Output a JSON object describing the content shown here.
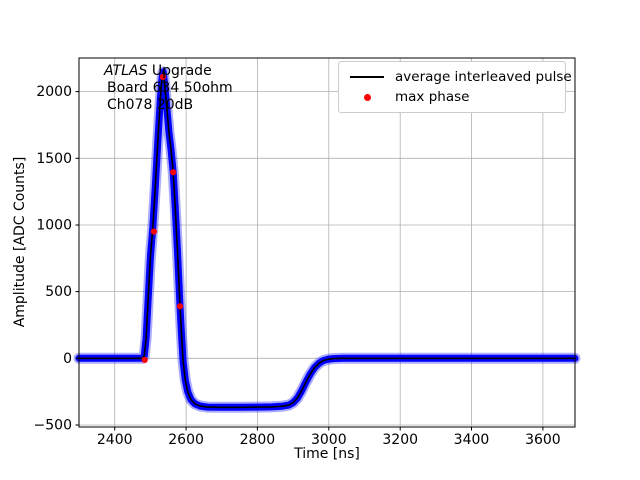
{
  "figure": {
    "background": "#ffffff"
  },
  "chart_data": {
    "type": "line",
    "title": "",
    "xlabel": "Time [ns]",
    "ylabel": "Amplitude [ADC Counts]",
    "xlim": [
      2300,
      3690
    ],
    "ylim": [
      -515,
      2252
    ],
    "grid": true,
    "xticks": {
      "values": [
        2400,
        2600,
        2800,
        3000,
        3200,
        3400,
        3600
      ],
      "labels": [
        "2400",
        "2600",
        "2800",
        "3000",
        "3200",
        "3400",
        "3600"
      ]
    },
    "yticks": {
      "values": [
        -500,
        0,
        500,
        1000,
        1500,
        2000
      ],
      "labels": [
        "−500",
        "0",
        "500",
        "1000",
        "1500",
        "2000"
      ]
    },
    "colors": {
      "grid": "#b0b0b0",
      "spine": "#000000",
      "pulse_band": "#0000ff",
      "average_line": "#000000",
      "max_phase": "#ff0000",
      "legend_border": "#cccccc"
    },
    "annotation": {
      "line1_italic": "ATLAS",
      "line1_rest": " Upgrade",
      "line2": "Board 634 50ohm",
      "line3": "Ch078 20dB"
    },
    "legend": {
      "position": "upper-right",
      "entries": [
        {
          "label": "average interleaved pulse",
          "marker": "line",
          "color": "#000000"
        },
        {
          "label": "max phase",
          "marker": "dot",
          "color": "#ff0000"
        }
      ]
    },
    "series": [
      {
        "name": "interleaved pulses",
        "style": "band",
        "color": "#0000ff"
      },
      {
        "name": "average interleaved pulse",
        "style": "line",
        "color": "#000000"
      }
    ],
    "pulse_points": [
      [
        2300,
        0
      ],
      [
        2360,
        0
      ],
      [
        2420,
        0
      ],
      [
        2460,
        0
      ],
      [
        2478,
        0
      ],
      [
        2483,
        20
      ],
      [
        2488,
        150
      ],
      [
        2494,
        450
      ],
      [
        2500,
        760
      ],
      [
        2507,
        990
      ],
      [
        2514,
        1300
      ],
      [
        2521,
        1640
      ],
      [
        2528,
        1950
      ],
      [
        2533,
        2110
      ],
      [
        2536,
        2148
      ],
      [
        2540,
        2060
      ],
      [
        2546,
        1880
      ],
      [
        2552,
        1700
      ],
      [
        2558,
        1560
      ],
      [
        2564,
        1395
      ],
      [
        2570,
        1120
      ],
      [
        2576,
        800
      ],
      [
        2583,
        390
      ],
      [
        2588,
        140
      ],
      [
        2592,
        -30
      ],
      [
        2598,
        -165
      ],
      [
        2605,
        -252
      ],
      [
        2614,
        -310
      ],
      [
        2625,
        -342
      ],
      [
        2640,
        -358
      ],
      [
        2660,
        -366
      ],
      [
        2700,
        -367
      ],
      [
        2750,
        -367
      ],
      [
        2800,
        -366
      ],
      [
        2840,
        -364
      ],
      [
        2870,
        -359
      ],
      [
        2888,
        -351
      ],
      [
        2900,
        -333
      ],
      [
        2912,
        -298
      ],
      [
        2924,
        -243
      ],
      [
        2936,
        -178
      ],
      [
        2948,
        -118
      ],
      [
        2960,
        -70
      ],
      [
        2972,
        -38
      ],
      [
        2984,
        -18
      ],
      [
        2996,
        -8
      ],
      [
        3012,
        -2
      ],
      [
        3040,
        0
      ],
      [
        3100,
        0
      ],
      [
        3200,
        0
      ],
      [
        3300,
        0
      ],
      [
        3400,
        0
      ],
      [
        3500,
        0
      ],
      [
        3600,
        0
      ],
      [
        3690,
        0
      ]
    ],
    "max_phase_points": [
      [
        2484,
        -12
      ],
      [
        2510,
        950
      ],
      [
        2535,
        2110
      ],
      [
        2564,
        1395
      ],
      [
        2583,
        390
      ]
    ]
  }
}
